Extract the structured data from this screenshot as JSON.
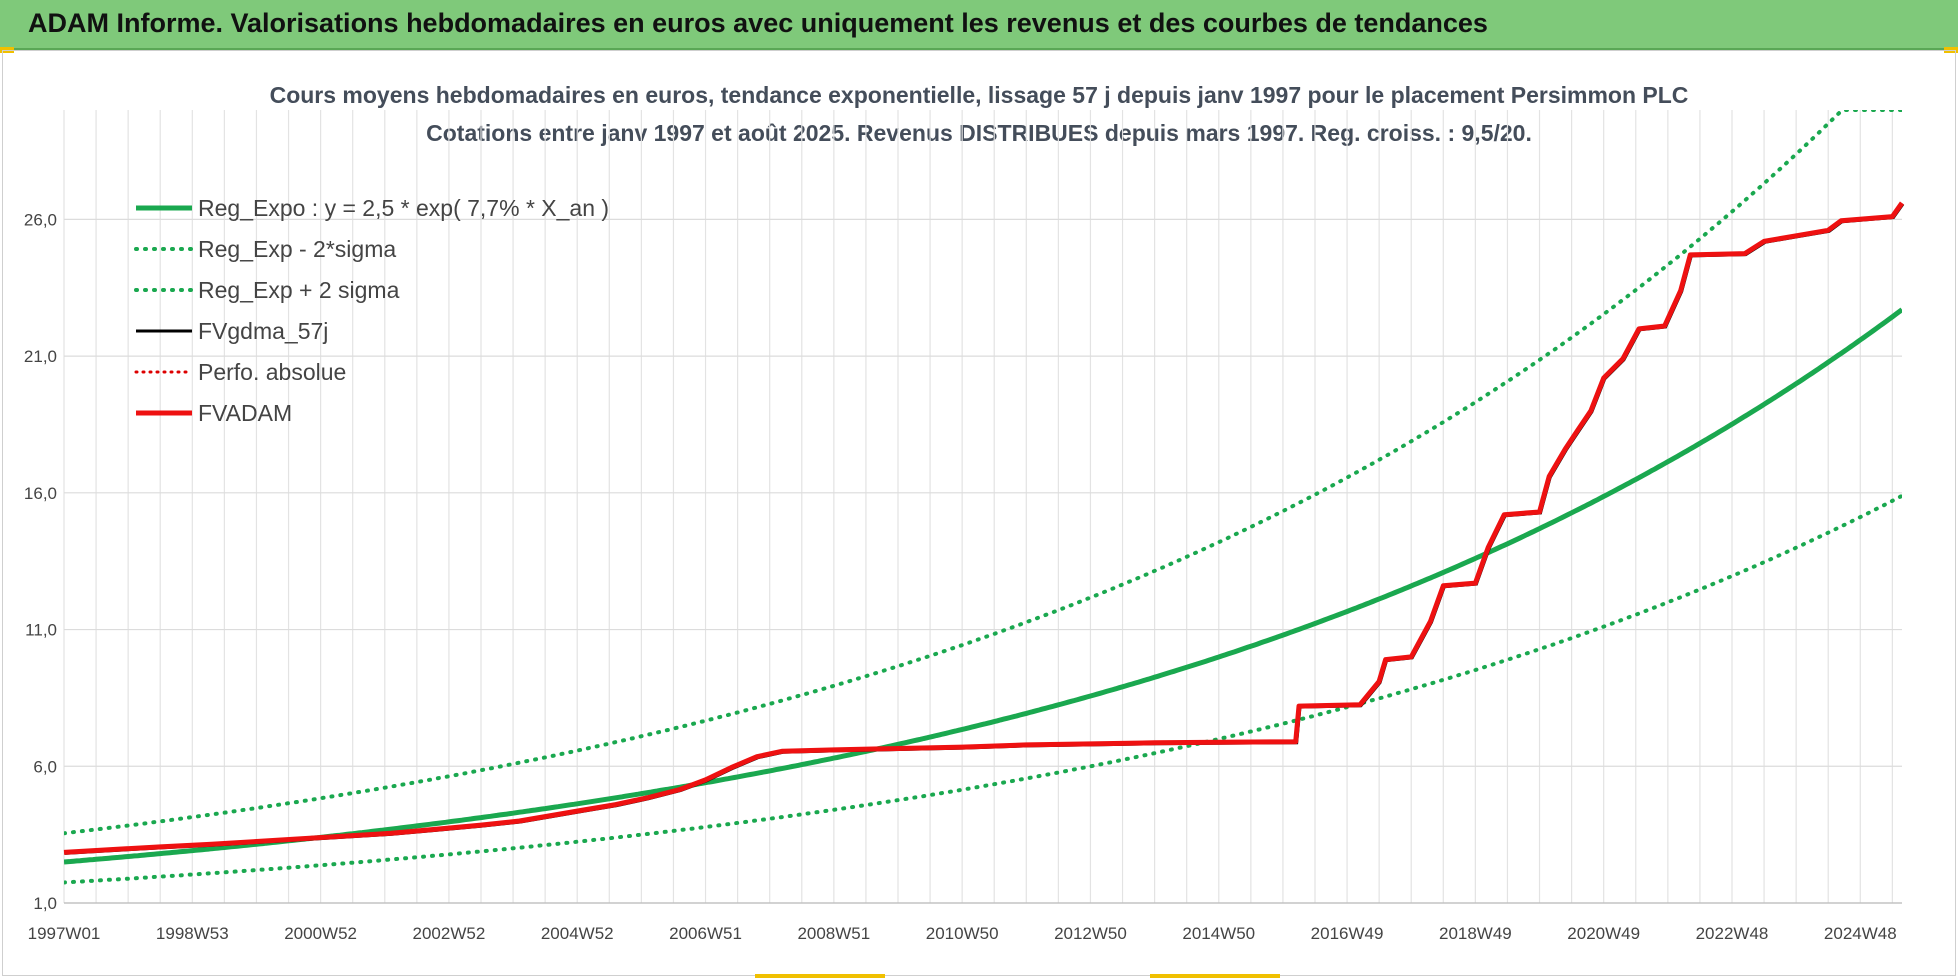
{
  "header": {
    "title": "ADAM Informe. Valorisations hebdomadaires en euros avec uniquement les revenus et des courbes de tendances"
  },
  "colors": {
    "banner": "#7fc97a",
    "trend": "#1aa84f",
    "fv57": "#000000",
    "fvadam": "#ee1111",
    "perfo": "#dd0000"
  },
  "chart_data": {
    "type": "line",
    "title": "Cours moyens hebdomadaires en euros, tendance exponentielle, lissage 57 j depuis janv 1997 pour le placement Persimmon PLC",
    "subtitle": "Cotations entre janv 1997 et août 2025.  Revenus DISTRIBUES depuis mars 1997. Reg. croiss. : 9,5/20.",
    "xlabel": "",
    "ylabel": "",
    "x_range": [
      1997.0,
      2025.65
    ],
    "ylim": [
      1.0,
      30.0
    ],
    "y_ticks": [
      1.0,
      6.0,
      11.0,
      16.0,
      21.0,
      26.0
    ],
    "y_tick_labels": [
      "1,0",
      "6,0",
      "11,0",
      "16,0",
      "21,0",
      "26,0"
    ],
    "x_ticks": [
      {
        "label": "1997W01",
        "x": 1997.0
      },
      {
        "label": "1998W53",
        "x": 1999.0
      },
      {
        "label": "2000W52",
        "x": 2001.0
      },
      {
        "label": "2002W52",
        "x": 2003.0
      },
      {
        "label": "2004W52",
        "x": 2005.0
      },
      {
        "label": "2006W51",
        "x": 2007.0
      },
      {
        "label": "2008W51",
        "x": 2009.0
      },
      {
        "label": "2010W50",
        "x": 2011.0
      },
      {
        "label": "2012W50",
        "x": 2013.0
      },
      {
        "label": "2014W50",
        "x": 2015.0
      },
      {
        "label": "2016W49",
        "x": 2017.0
      },
      {
        "label": "2018W49",
        "x": 2019.0
      },
      {
        "label": "2020W49",
        "x": 2021.0
      },
      {
        "label": "2022W48",
        "x": 2023.0
      },
      {
        "label": "2024W48",
        "x": 2025.0
      }
    ],
    "grid": true,
    "legend_position": "top-left",
    "trend": {
      "a": 2.5,
      "rate": 0.077,
      "low_factor": 0.7,
      "high_factor": 1.42
    },
    "series": [
      {
        "name": "Reg_Expo : y = 2,5 * exp( 7,7% *  X_an )",
        "style": "solid-thick",
        "color": "#1aa84f"
      },
      {
        "name": "Reg_Exp - 2*sigma",
        "style": "dotted",
        "color": "#1aa84f"
      },
      {
        "name": "Reg_Exp + 2 sigma",
        "style": "dotted",
        "color": "#1aa84f"
      },
      {
        "name": "FVgdma_57j",
        "style": "solid",
        "color": "#000000"
      },
      {
        "name": "Perfo. absolue",
        "style": "dotted",
        "color": "#dd0000"
      },
      {
        "name": "FVADAM",
        "style": "solid-thick",
        "color": "#ee1111",
        "points": [
          [
            1997.0,
            2.85
          ],
          [
            1997.7,
            2.95
          ],
          [
            1998.5,
            3.05
          ],
          [
            1999.3,
            3.15
          ],
          [
            2000.0,
            3.25
          ],
          [
            2000.7,
            3.35
          ],
          [
            2001.4,
            3.45
          ],
          [
            2002.1,
            3.55
          ],
          [
            2002.8,
            3.7
          ],
          [
            2003.5,
            3.85
          ],
          [
            2004.1,
            4.0
          ],
          [
            2004.6,
            4.2
          ],
          [
            2005.1,
            4.4
          ],
          [
            2005.6,
            4.6
          ],
          [
            2006.1,
            4.85
          ],
          [
            2006.6,
            5.15
          ],
          [
            2007.0,
            5.5
          ],
          [
            2007.4,
            5.95
          ],
          [
            2007.8,
            6.35
          ],
          [
            2008.2,
            6.55
          ],
          [
            2009.0,
            6.6
          ],
          [
            2010.0,
            6.65
          ],
          [
            2011.0,
            6.7
          ],
          [
            2012.0,
            6.78
          ],
          [
            2013.0,
            6.82
          ],
          [
            2014.0,
            6.86
          ],
          [
            2015.0,
            6.88
          ],
          [
            2016.2,
            6.9
          ],
          [
            2016.25,
            8.2
          ],
          [
            2017.2,
            8.25
          ],
          [
            2017.5,
            9.1
          ],
          [
            2017.6,
            9.9
          ],
          [
            2018.0,
            10.0
          ],
          [
            2018.3,
            11.3
          ],
          [
            2018.5,
            12.6
          ],
          [
            2019.0,
            12.7
          ],
          [
            2019.2,
            14.0
          ],
          [
            2019.45,
            15.2
          ],
          [
            2020.0,
            15.3
          ],
          [
            2020.15,
            16.6
          ],
          [
            2020.4,
            17.6
          ],
          [
            2020.6,
            18.3
          ],
          [
            2020.8,
            19.0
          ],
          [
            2021.0,
            20.2
          ],
          [
            2021.3,
            20.9
          ],
          [
            2021.55,
            22.0
          ],
          [
            2021.95,
            22.1
          ],
          [
            2022.2,
            23.4
          ],
          [
            2022.35,
            24.7
          ],
          [
            2023.2,
            24.75
          ],
          [
            2023.5,
            25.2
          ],
          [
            2024.0,
            25.4
          ],
          [
            2024.5,
            25.6
          ],
          [
            2024.7,
            25.95
          ],
          [
            2025.5,
            26.1
          ],
          [
            2025.65,
            26.6
          ]
        ]
      }
    ]
  }
}
